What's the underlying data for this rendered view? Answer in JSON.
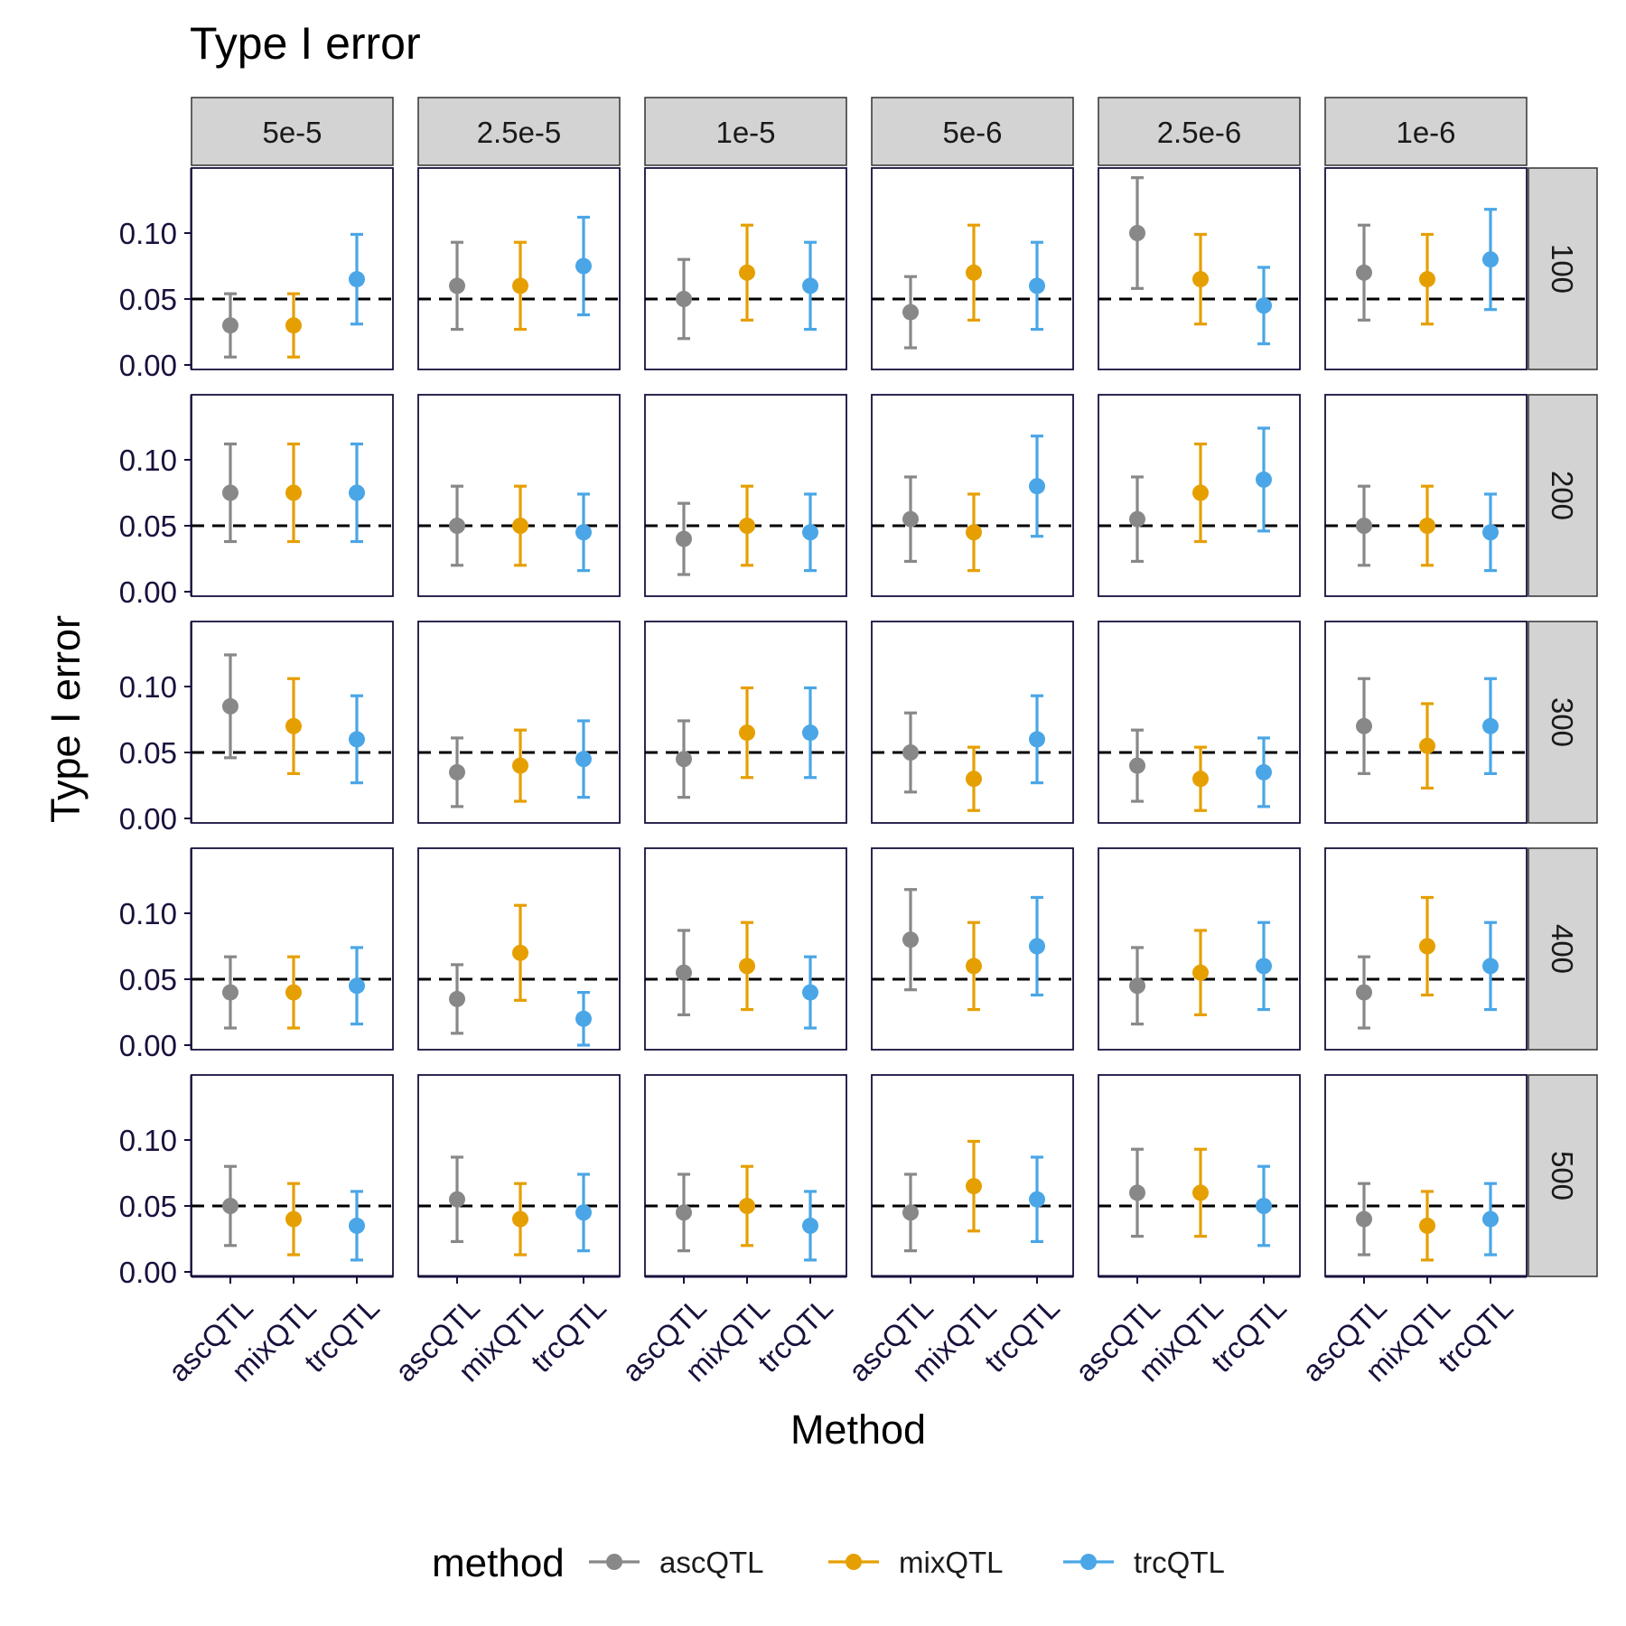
{
  "chart_data": {
    "type": "scatter",
    "title": "Type I error",
    "xlabel": "Method",
    "ylabel": "Type I error",
    "col_facets": [
      "5e-5",
      "2.5e-5",
      "1e-5",
      "5e-6",
      "2.5e-6",
      "1e-6"
    ],
    "row_facets": [
      "100",
      "200",
      "300",
      "400",
      "500"
    ],
    "categories": [
      "ascQTL",
      "mixQTL",
      "trcQTL"
    ],
    "y_ticks": [
      "0.00",
      "0.05",
      "0.10"
    ],
    "ylim": [
      0,
      0.14
    ],
    "reference_line": 0.05,
    "legend": {
      "title": "method",
      "position": "bottom",
      "entries": [
        "ascQTL",
        "mixQTL",
        "trcQTL"
      ]
    },
    "colors": {
      "ascQTL": "#888888",
      "mixQTL": "#e69f00",
      "trcQTL": "#4aa6e6"
    },
    "values": [
      [
        [
          0.03,
          0.03,
          0.065
        ],
        [
          0.06,
          0.06,
          0.075
        ],
        [
          0.05,
          0.07,
          0.06
        ],
        [
          0.04,
          0.07,
          0.06
        ],
        [
          0.1,
          0.065,
          0.045
        ],
        [
          0.07,
          0.065,
          0.08
        ]
      ],
      [
        [
          0.075,
          0.075,
          0.075
        ],
        [
          0.05,
          0.05,
          0.045
        ],
        [
          0.04,
          0.05,
          0.045
        ],
        [
          0.055,
          0.045,
          0.08
        ],
        [
          0.055,
          0.075,
          0.085
        ],
        [
          0.05,
          0.05,
          0.045
        ]
      ],
      [
        [
          0.085,
          0.07,
          0.06
        ],
        [
          0.035,
          0.04,
          0.045
        ],
        [
          0.045,
          0.065,
          0.065
        ],
        [
          0.05,
          0.03,
          0.06
        ],
        [
          0.04,
          0.03,
          0.035
        ],
        [
          0.07,
          0.055,
          0.07
        ]
      ],
      [
        [
          0.04,
          0.04,
          0.045
        ],
        [
          0.035,
          0.07,
          0.02
        ],
        [
          0.055,
          0.06,
          0.04
        ],
        [
          0.08,
          0.06,
          0.075
        ],
        [
          0.045,
          0.055,
          0.06
        ],
        [
          0.04,
          0.075,
          0.06
        ]
      ],
      [
        [
          0.05,
          0.04,
          0.035
        ],
        [
          0.055,
          0.04,
          0.045
        ],
        [
          0.045,
          0.05,
          0.035
        ],
        [
          0.045,
          0.065,
          0.055
        ],
        [
          0.06,
          0.06,
          0.05
        ],
        [
          0.04,
          0.035,
          0.04
        ]
      ]
    ],
    "lower": [
      [
        [
          0.006,
          0.006,
          0.031
        ],
        [
          0.027,
          0.027,
          0.038
        ],
        [
          0.02,
          0.034,
          0.027
        ],
        [
          0.013,
          0.034,
          0.027
        ],
        [
          0.058,
          0.031,
          0.016
        ],
        [
          0.034,
          0.031,
          0.042
        ]
      ],
      [
        [
          0.038,
          0.038,
          0.038
        ],
        [
          0.02,
          0.02,
          0.016
        ],
        [
          0.013,
          0.02,
          0.016
        ],
        [
          0.023,
          0.016,
          0.042
        ],
        [
          0.023,
          0.038,
          0.046
        ],
        [
          0.02,
          0.02,
          0.016
        ]
      ],
      [
        [
          0.046,
          0.034,
          0.027
        ],
        [
          0.009,
          0.013,
          0.016
        ],
        [
          0.016,
          0.031,
          0.031
        ],
        [
          0.02,
          0.006,
          0.027
        ],
        [
          0.013,
          0.006,
          0.009
        ],
        [
          0.034,
          0.023,
          0.034
        ]
      ],
      [
        [
          0.013,
          0.013,
          0.016
        ],
        [
          0.009,
          0.034,
          0.0
        ],
        [
          0.023,
          0.027,
          0.013
        ],
        [
          0.042,
          0.027,
          0.038
        ],
        [
          0.016,
          0.023,
          0.027
        ],
        [
          0.013,
          0.038,
          0.027
        ]
      ],
      [
        [
          0.02,
          0.013,
          0.009
        ],
        [
          0.023,
          0.013,
          0.016
        ],
        [
          0.016,
          0.02,
          0.009
        ],
        [
          0.016,
          0.031,
          0.023
        ],
        [
          0.027,
          0.027,
          0.02
        ],
        [
          0.013,
          0.009,
          0.013
        ]
      ]
    ],
    "upper": [
      [
        [
          0.054,
          0.054,
          0.099
        ],
        [
          0.093,
          0.093,
          0.112
        ],
        [
          0.08,
          0.106,
          0.093
        ],
        [
          0.067,
          0.106,
          0.093
        ],
        [
          0.142,
          0.099,
          0.074
        ],
        [
          0.106,
          0.099,
          0.118
        ]
      ],
      [
        [
          0.112,
          0.112,
          0.112
        ],
        [
          0.08,
          0.08,
          0.074
        ],
        [
          0.067,
          0.08,
          0.074
        ],
        [
          0.087,
          0.074,
          0.118
        ],
        [
          0.087,
          0.112,
          0.124
        ],
        [
          0.08,
          0.08,
          0.074
        ]
      ],
      [
        [
          0.124,
          0.106,
          0.093
        ],
        [
          0.061,
          0.067,
          0.074
        ],
        [
          0.074,
          0.099,
          0.099
        ],
        [
          0.08,
          0.054,
          0.093
        ],
        [
          0.067,
          0.054,
          0.061
        ],
        [
          0.106,
          0.087,
          0.106
        ]
      ],
      [
        [
          0.067,
          0.067,
          0.074
        ],
        [
          0.061,
          0.106,
          0.04
        ],
        [
          0.087,
          0.093,
          0.067
        ],
        [
          0.118,
          0.093,
          0.112
        ],
        [
          0.074,
          0.087,
          0.093
        ],
        [
          0.067,
          0.112,
          0.093
        ]
      ],
      [
        [
          0.08,
          0.067,
          0.061
        ],
        [
          0.087,
          0.067,
          0.074
        ],
        [
          0.074,
          0.08,
          0.061
        ],
        [
          0.074,
          0.099,
          0.087
        ],
        [
          0.093,
          0.093,
          0.08
        ],
        [
          0.067,
          0.061,
          0.067
        ]
      ]
    ]
  }
}
